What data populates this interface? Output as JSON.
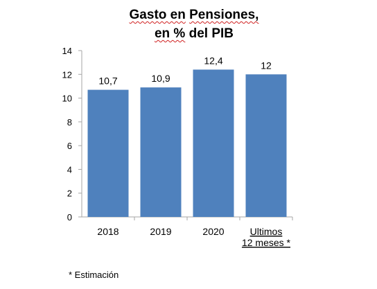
{
  "chart_data": {
    "type": "bar",
    "title_line1_part1": "Gasto en",
    "title_line1_part2": "Pensiones,",
    "title_line2_part1": "en %",
    "title_line2_part2": "del PIB",
    "categories": [
      "2018",
      "2019",
      "2020",
      "Ultimos 12 meses *"
    ],
    "category_lines": [
      [
        "2018"
      ],
      [
        "2019"
      ],
      [
        "2020"
      ],
      [
        "Ultimos",
        "12 meses *"
      ]
    ],
    "values": [
      10.7,
      10.9,
      12.4,
      12
    ],
    "data_labels": [
      "10,7",
      "10,9",
      "12,4",
      "12"
    ],
    "ylim": [
      0,
      14
    ],
    "yticks": [
      0,
      2,
      4,
      6,
      8,
      10,
      12,
      14
    ],
    "grid": false,
    "bar_color": "#4f81bd",
    "axis_color": "#a6a6a6",
    "footnote": "* Estimación"
  }
}
